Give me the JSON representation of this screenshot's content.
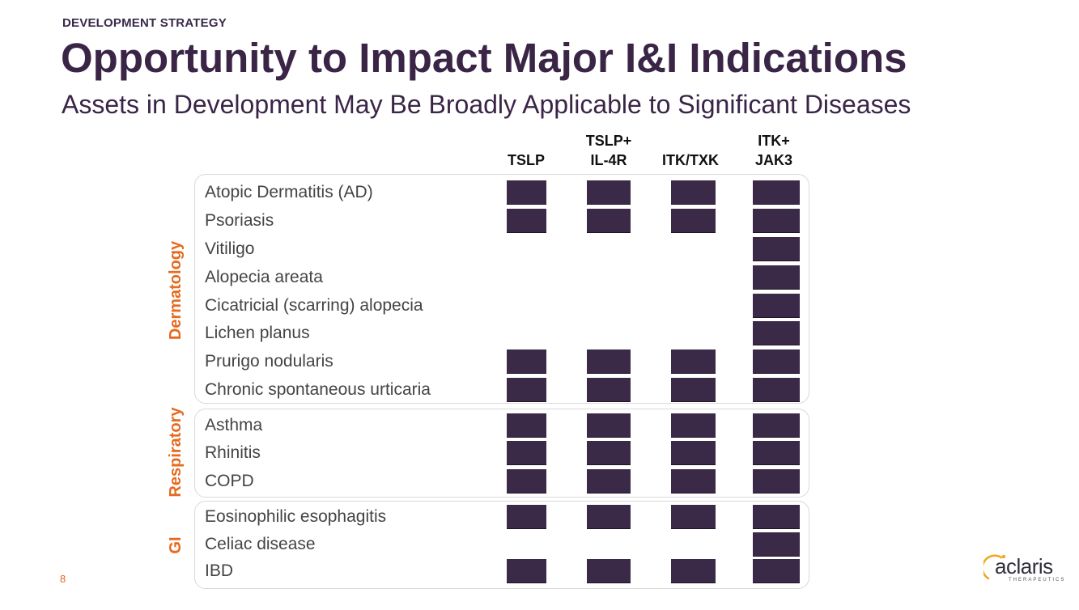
{
  "header": {
    "kicker": "DEVELOPMENT STRATEGY",
    "title": "Opportunity to Impact Major I&I Indications",
    "subtitle": "Assets in Development May Be Broadly Applicable to Significant Diseases"
  },
  "columns": [
    {
      "line1": "",
      "line2": "TSLP"
    },
    {
      "line1": "TSLP+",
      "line2": "IL-4R"
    },
    {
      "line1": "",
      "line2": "ITK/TXK"
    },
    {
      "line1": "ITK+",
      "line2": "JAK3"
    }
  ],
  "groups": [
    {
      "label": "Dermatology"
    },
    {
      "label": "Respiratory"
    },
    {
      "label": "GI"
    }
  ],
  "rows": [
    {
      "label": "Atopic Dermatitis (AD)",
      "group": "Dermatology",
      "marks": [
        true,
        true,
        true,
        true
      ]
    },
    {
      "label": "Psoriasis",
      "group": "Dermatology",
      "marks": [
        true,
        true,
        true,
        true
      ]
    },
    {
      "label": "Vitiligo",
      "group": "Dermatology",
      "marks": [
        false,
        false,
        false,
        true
      ]
    },
    {
      "label": "Alopecia areata",
      "group": "Dermatology",
      "marks": [
        false,
        false,
        false,
        true
      ]
    },
    {
      "label": "Cicatricial (scarring) alopecia",
      "group": "Dermatology",
      "marks": [
        false,
        false,
        false,
        true
      ]
    },
    {
      "label": "Lichen planus",
      "group": "Dermatology",
      "marks": [
        false,
        false,
        false,
        true
      ]
    },
    {
      "label": "Prurigo nodularis",
      "group": "Dermatology",
      "marks": [
        true,
        true,
        true,
        true
      ]
    },
    {
      "label": "Chronic spontaneous urticaria",
      "group": "Dermatology",
      "marks": [
        true,
        true,
        true,
        true
      ]
    },
    {
      "label": "Asthma",
      "group": "Respiratory",
      "marks": [
        true,
        true,
        true,
        true
      ]
    },
    {
      "label": "Rhinitis",
      "group": "Respiratory",
      "marks": [
        true,
        true,
        true,
        true
      ]
    },
    {
      "label": "COPD",
      "group": "Respiratory",
      "marks": [
        true,
        true,
        true,
        true
      ]
    },
    {
      "label": "Eosinophilic esophagitis",
      "group": "GI",
      "marks": [
        true,
        true,
        true,
        true
      ]
    },
    {
      "label": "Celiac disease",
      "group": "GI",
      "marks": [
        false,
        false,
        false,
        true
      ]
    },
    {
      "label": "IBD",
      "group": "GI",
      "marks": [
        true,
        true,
        true,
        true
      ]
    }
  ],
  "footer": {
    "page_number": "8",
    "logo_text": "aclaris",
    "logo_sub": "THERAPEUTICS"
  },
  "colors": {
    "title": "#3b2547",
    "accent": "#e66a1f",
    "cell": "#3b2a47"
  }
}
